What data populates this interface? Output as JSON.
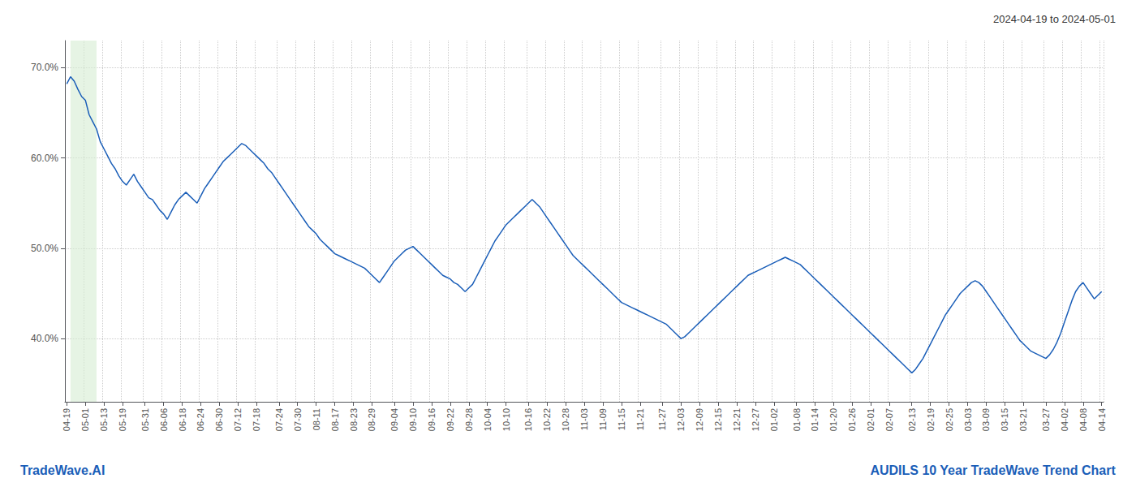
{
  "chart_data": {
    "type": "line",
    "title": "2024-04-19 to 2024-05-01",
    "annotations": [
      "TradeWave.AI",
      "AUDILS 10 Year TradeWave Trend Chart"
    ],
    "color": "#1a5eb8",
    "grid": true,
    "ylim": [
      0.33,
      0.73
    ],
    "yticks": [
      {
        "value": 0.4,
        "label": "40.0%"
      },
      {
        "value": 0.5,
        "label": "50.0%"
      },
      {
        "value": 0.6,
        "label": "60.0%"
      },
      {
        "value": 0.7,
        "label": "70.0%"
      }
    ],
    "highlight": {
      "start": 1,
      "end": 8,
      "color": "#d6ecd2"
    },
    "categories": [
      "04-19",
      null,
      null,
      null,
      null,
      "05-01",
      null,
      null,
      null,
      null,
      "05-13",
      null,
      null,
      null,
      null,
      "05-19",
      null,
      null,
      null,
      null,
      null,
      "05-31",
      null,
      null,
      null,
      null,
      "06-06",
      null,
      null,
      null,
      null,
      "06-18",
      null,
      null,
      null,
      null,
      "06-24",
      null,
      null,
      null,
      null,
      "06-30",
      null,
      null,
      null,
      null,
      "07-12",
      null,
      null,
      null,
      null,
      "07-18",
      null,
      null,
      null,
      null,
      null,
      "07-24",
      null,
      null,
      null,
      null,
      "07-30",
      null,
      null,
      null,
      null,
      "08-11",
      null,
      null,
      null,
      null,
      "08-17",
      null,
      null,
      null,
      null,
      "08-23",
      null,
      null,
      null,
      null,
      "08-29",
      null,
      null,
      null,
      null,
      null,
      "09-04",
      null,
      null,
      null,
      null,
      "09-10",
      null,
      null,
      null,
      null,
      "09-16",
      null,
      null,
      null,
      null,
      "09-22",
      null,
      null,
      null,
      null,
      "09-28",
      null,
      null,
      null,
      null,
      "10-04",
      null,
      null,
      null,
      null,
      "10-10",
      null,
      null,
      null,
      null,
      null,
      "10-16",
      null,
      null,
      null,
      null,
      "10-22",
      null,
      null,
      null,
      null,
      "10-28",
      null,
      null,
      null,
      null,
      "11-03",
      null,
      null,
      null,
      null,
      "11-09",
      null,
      null,
      null,
      null,
      "11-15",
      null,
      null,
      null,
      null,
      "11-21",
      null,
      null,
      null,
      null,
      null,
      "11-27",
      null,
      null,
      null,
      null,
      "12-03",
      null,
      null,
      null,
      null,
      "12-09",
      null,
      null,
      null,
      null,
      "12-15",
      null,
      null,
      null,
      null,
      "12-21",
      null,
      null,
      null,
      null,
      "12-27",
      null,
      null,
      null,
      null,
      "01-02",
      null,
      null,
      null,
      null,
      null,
      "01-08",
      null,
      null,
      null,
      null,
      "01-14",
      null,
      null,
      null,
      null,
      "01-20",
      null,
      null,
      null,
      null,
      "01-26",
      null,
      null,
      null,
      null,
      "02-01",
      null,
      null,
      null,
      null,
      "02-07",
      null,
      null,
      null,
      null,
      null,
      "02-13",
      null,
      null,
      null,
      null,
      "02-19",
      null,
      null,
      null,
      null,
      "02-25",
      null,
      null,
      null,
      null,
      "03-03",
      null,
      null,
      null,
      null,
      "03-09",
      null,
      null,
      null,
      null,
      "03-15",
      null,
      null,
      null,
      null,
      "03-21",
      null,
      null,
      null,
      null,
      null,
      "03-27",
      null,
      null,
      null,
      null,
      "04-02",
      null,
      null,
      null,
      null,
      "04-08",
      null,
      null,
      null,
      null,
      "04-14"
    ],
    "values": [
      0.682,
      0.69,
      0.685,
      0.676,
      0.668,
      0.664,
      0.648,
      0.64,
      0.632,
      0.618,
      0.61,
      0.602,
      0.594,
      0.588,
      0.58,
      0.574,
      0.57,
      0.576,
      0.582,
      0.574,
      0.568,
      0.562,
      0.556,
      0.554,
      0.548,
      0.542,
      0.538,
      0.532,
      0.54,
      0.548,
      0.554,
      0.558,
      0.562,
      0.558,
      0.554,
      0.55,
      0.558,
      0.566,
      0.572,
      0.578,
      0.584,
      0.59,
      0.596,
      0.6,
      0.604,
      0.608,
      0.612,
      0.616,
      0.614,
      0.61,
      0.606,
      0.602,
      0.598,
      0.594,
      0.588,
      0.584,
      0.578,
      0.572,
      0.566,
      0.56,
      0.554,
      0.548,
      0.542,
      0.536,
      0.53,
      0.524,
      0.52,
      0.516,
      0.51,
      0.506,
      0.502,
      0.498,
      0.494,
      0.492,
      0.49,
      0.488,
      0.486,
      0.484,
      0.482,
      0.48,
      0.478,
      0.474,
      0.47,
      0.466,
      0.462,
      0.468,
      0.474,
      0.48,
      0.486,
      0.49,
      0.494,
      0.498,
      0.5,
      0.502,
      0.498,
      0.494,
      0.49,
      0.486,
      0.482,
      0.478,
      0.474,
      0.47,
      0.468,
      0.466,
      0.462,
      0.46,
      0.456,
      0.452,
      0.456,
      0.46,
      0.468,
      0.476,
      0.484,
      0.492,
      0.5,
      0.508,
      0.514,
      0.52,
      0.526,
      0.53,
      0.534,
      0.538,
      0.542,
      0.546,
      0.55,
      0.554,
      0.55,
      0.546,
      0.54,
      0.534,
      0.528,
      0.522,
      0.516,
      0.51,
      0.504,
      0.498,
      0.492,
      0.488,
      0.484,
      0.48,
      0.476,
      0.472,
      0.468,
      0.464,
      0.46,
      0.456,
      0.452,
      0.448,
      0.444,
      0.44,
      0.438,
      0.436,
      0.434,
      0.432,
      0.43,
      0.428,
      0.426,
      0.424,
      0.422,
      0.42,
      0.418,
      0.416,
      0.412,
      0.408,
      0.404,
      0.4,
      0.402,
      0.406,
      0.41,
      0.414,
      0.418,
      0.422,
      0.426,
      0.43,
      0.434,
      0.438,
      0.442,
      0.446,
      0.45,
      0.454,
      0.458,
      0.462,
      0.466,
      0.47,
      0.472,
      0.474,
      0.476,
      0.478,
      0.48,
      0.482,
      0.484,
      0.486,
      0.488,
      0.49,
      0.488,
      0.486,
      0.484,
      0.482,
      0.478,
      0.474,
      0.47,
      0.466,
      0.462,
      0.458,
      0.454,
      0.45,
      0.446,
      0.442,
      0.438,
      0.434,
      0.43,
      0.426,
      0.422,
      0.418,
      0.414,
      0.41,
      0.406,
      0.402,
      0.398,
      0.394,
      0.39,
      0.386,
      0.382,
      0.378,
      0.374,
      0.37,
      0.366,
      0.362,
      0.366,
      0.372,
      0.378,
      0.386,
      0.394,
      0.402,
      0.41,
      0.418,
      0.426,
      0.432,
      0.438,
      0.444,
      0.45,
      0.454,
      0.458,
      0.462,
      0.464,
      0.462,
      0.458,
      0.452,
      0.446,
      0.44,
      0.434,
      0.428,
      0.422,
      0.416,
      0.41,
      0.404,
      0.398,
      0.394,
      0.39,
      0.386,
      0.384,
      0.382,
      0.38,
      0.378,
      0.382,
      0.388,
      0.396,
      0.406,
      0.418,
      0.43,
      0.442,
      0.452,
      0.458,
      0.462,
      0.456,
      0.45,
      0.444,
      0.448,
      0.452
    ]
  }
}
